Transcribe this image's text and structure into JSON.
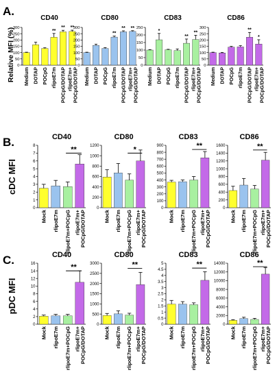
{
  "rows": [
    {
      "panel_label": "A.",
      "ylabel": "Relative MFI (%)",
      "show_ylabel_each": false
    },
    {
      "panel_label": "B.",
      "ylabel": "cDC MFI",
      "show_ylabel_each": false
    },
    {
      "panel_label": "C.",
      "ylabel": "pDC MFI",
      "show_ylabel_each": false
    }
  ],
  "chart_data": [
    {
      "row": 0,
      "col": 0,
      "type": "bar",
      "title": "CD40",
      "categories": [
        "Medium",
        "DOTAP",
        "POCpG",
        "rlipoE7m",
        "POCpG/DOTAP",
        "rlipoE7m+ POCpG/DOTAP"
      ],
      "values": [
        100,
        162,
        133,
        222,
        265,
        268
      ],
      "errors": [
        3,
        20,
        5,
        30,
        12,
        10
      ],
      "stars": [
        "",
        "",
        "",
        "**",
        "**",
        "**"
      ],
      "ylim": [
        0,
        300
      ],
      "yticks": [
        0,
        50,
        100,
        150,
        200,
        250,
        300
      ],
      "color": "#ffff2e"
    },
    {
      "row": 0,
      "col": 1,
      "type": "bar",
      "title": "CD80",
      "categories": [
        "Medium",
        "DOTAP",
        "POCpG",
        "rlipoE7m",
        "POCpG/DOTAP",
        "rlipoE7m+ POCpG/DOTAP"
      ],
      "values": [
        100,
        157,
        133,
        223,
        265,
        268
      ],
      "errors": [
        3,
        10,
        6,
        8,
        8,
        6
      ],
      "stars": [
        "",
        "",
        "",
        "**",
        "**",
        "**"
      ],
      "ylim": [
        0,
        300
      ],
      "yticks": [
        0,
        50,
        100,
        150,
        200,
        250,
        300
      ],
      "color": "#9ac3ee"
    },
    {
      "row": 0,
      "col": 2,
      "type": "bar",
      "title": "CD83",
      "categories": [
        "Medium",
        "DOTAP",
        "POCpG",
        "rlipoE7m",
        "POCpG/DOTAP",
        "rlipoE7m+ POCpG/DOTAP"
      ],
      "values": [
        100,
        168,
        102,
        97,
        145,
        170
      ],
      "errors": [
        3,
        42,
        3,
        10,
        28,
        28
      ],
      "stars": [
        "",
        "*",
        "",
        "",
        "**",
        "**"
      ],
      "ylim": [
        0,
        250
      ],
      "yticks": [
        0,
        50,
        100,
        150,
        200,
        250
      ],
      "color": "#a8f0a0"
    },
    {
      "row": 0,
      "col": 3,
      "type": "bar",
      "title": "CD86",
      "categories": [
        "Medium",
        "DOTAP",
        "POCpG",
        "rlipoE7m",
        "POCpG/DOTAP",
        "rlipoE7m+ POCpG/DOTAP"
      ],
      "values": [
        100,
        97,
        143,
        145,
        222,
        168
      ],
      "errors": [
        3,
        4,
        6,
        10,
        38,
        34
      ],
      "stars": [
        "",
        "",
        "",
        "",
        "**",
        "*"
      ],
      "ylim": [
        0,
        300
      ],
      "yticks": [
        0,
        50,
        100,
        150,
        200,
        250,
        300
      ],
      "color": "#c36ae8"
    },
    {
      "row": 1,
      "col": 0,
      "type": "bar",
      "title": "CD40",
      "categories": [
        "Mock",
        "rlipoE7m",
        "rlipoE7m+POCpG",
        "rlipoE7m+ POCpG/DOTAP"
      ],
      "values": [
        2.5,
        2.8,
        2.7,
        5.6
      ],
      "errors": [
        0.5,
        0.7,
        0.6,
        1.2
      ],
      "colors": [
        "#ffff2e",
        "#9ac3ee",
        "#a8f0a0",
        "#c36ae8"
      ],
      "ylim": [
        0,
        8
      ],
      "yticks": [
        0,
        1,
        2,
        3,
        4,
        5,
        6,
        7,
        8
      ],
      "bracket": {
        "from": 2,
        "to": 3,
        "label": "**",
        "y": 7.0
      }
    },
    {
      "row": 1,
      "col": 1,
      "type": "bar",
      "title": "CD80",
      "categories": [
        "Mock",
        "rlipoE7m",
        "rlipoE7m+POCpG",
        "rlipoE7m+ POCpG/DOTAP"
      ],
      "values": [
        590,
        670,
        530,
        900
      ],
      "errors": [
        140,
        180,
        120,
        210
      ],
      "colors": [
        "#ffff2e",
        "#9ac3ee",
        "#a8f0a0",
        "#c36ae8"
      ],
      "ylim": [
        0,
        1200
      ],
      "yticks": [
        0,
        200,
        400,
        600,
        800,
        1000,
        1200
      ],
      "bracket": {
        "from": 2,
        "to": 3,
        "label": "*",
        "y": 1050
      }
    },
    {
      "row": 1,
      "col": 2,
      "type": "bar",
      "title": "CD83",
      "categories": [
        "Mock",
        "rlipoE7m",
        "rlipoE7m+POCpG",
        "rlipoE7m+ POCpG/DOTAP"
      ],
      "values": [
        370,
        375,
        400,
        720
      ],
      "errors": [
        25,
        25,
        50,
        90
      ],
      "colors": [
        "#ffff2e",
        "#9ac3ee",
        "#a8f0a0",
        "#c36ae8"
      ],
      "ylim": [
        0,
        900
      ],
      "yticks": [
        0,
        100,
        200,
        300,
        400,
        500,
        600,
        700,
        800,
        900
      ],
      "bracket": {
        "from": 2,
        "to": 3,
        "label": "**",
        "y": 840
      }
    },
    {
      "row": 1,
      "col": 3,
      "type": "bar",
      "title": "CD86",
      "categories": [
        "Mock",
        "rlipoE7m",
        "rlipoE7m+POCpG",
        "rlipoE7m+ POCpG/DOTAP"
      ],
      "values": [
        440,
        580,
        480,
        1220
      ],
      "errors": [
        110,
        170,
        90,
        200
      ],
      "colors": [
        "#ffff2e",
        "#9ac3ee",
        "#a8f0a0",
        "#c36ae8"
      ],
      "ylim": [
        0,
        1600
      ],
      "yticks": [
        0,
        200,
        400,
        600,
        800,
        1000,
        1200,
        1400,
        1600
      ],
      "bracket": {
        "from": 2,
        "to": 3,
        "label": "**",
        "y": 1480
      }
    },
    {
      "row": 2,
      "col": 0,
      "type": "bar",
      "title": "CD40",
      "categories": [
        "Mock",
        "rlipoE7m",
        "rlipoE7m+POCpG",
        "rlipoE7m+ POCpG/DOTAP"
      ],
      "values": [
        2.1,
        2.2,
        2.2,
        11.0
      ],
      "errors": [
        0.3,
        0.4,
        0.4,
        3.0
      ],
      "colors": [
        "#ffff2e",
        "#9ac3ee",
        "#a8f0a0",
        "#c36ae8"
      ],
      "ylim": [
        0,
        16
      ],
      "yticks": [
        0,
        2,
        4,
        6,
        8,
        10,
        12,
        14,
        16
      ],
      "bracket": {
        "from": 2,
        "to": 3,
        "label": "**",
        "y": 14.0
      }
    },
    {
      "row": 2,
      "col": 1,
      "type": "bar",
      "title": "CD80",
      "categories": [
        "Mock",
        "rlipoE7m",
        "rlipoE7m+POCpG",
        "rlipoE7m+ POCpG/DOTAP"
      ],
      "values": [
        430,
        510,
        450,
        1950
      ],
      "errors": [
        100,
        150,
        90,
        600
      ],
      "colors": [
        "#ffff2e",
        "#9ac3ee",
        "#a8f0a0",
        "#c36ae8"
      ],
      "ylim": [
        0,
        3000
      ],
      "yticks": [
        0,
        500,
        1000,
        1500,
        2000,
        2500,
        3000
      ],
      "bracket": {
        "from": 2,
        "to": 3,
        "label": "**",
        "y": 2750
      }
    },
    {
      "row": 2,
      "col": 2,
      "type": "bar",
      "title": "CD83",
      "categories": [
        "Mock",
        "rlipoE7m",
        "rlipoE7m+POCpG",
        "rlipoE7m+ POCpG/DOTAP"
      ],
      "values": [
        1.65,
        1.65,
        1.6,
        3.6
      ],
      "errors": [
        0.3,
        0.2,
        0.15,
        0.7
      ],
      "colors": [
        "#ffff2e",
        "#9ac3ee",
        "#a8f0a0",
        "#c36ae8"
      ],
      "ylim": [
        0,
        5
      ],
      "yticks": [
        0,
        0.5,
        1,
        1.5,
        2,
        2.5,
        3,
        3.5,
        4,
        4.5,
        5
      ],
      "ytick_labels": [
        "0",
        "0.5",
        "1",
        "1.5",
        "2",
        "2.5",
        "3",
        "3.5",
        "4",
        "4.5",
        "5"
      ],
      "bracket": {
        "from": 2,
        "to": 3,
        "label": "**",
        "y": 4.6
      }
    },
    {
      "row": 2,
      "col": 3,
      "type": "bar",
      "title": "CD86",
      "categories": [
        "Mock",
        "rlipoE7m",
        "rlipoE7m+POCpG",
        "rlipoE7m+ POCpG/DOTAP"
      ],
      "values": [
        900,
        1300,
        1100,
        11500
      ],
      "errors": [
        150,
        300,
        250,
        1500
      ],
      "colors": [
        "#ffff2e",
        "#9ac3ee",
        "#a8f0a0",
        "#c36ae8"
      ],
      "ylim": [
        0,
        14000
      ],
      "yticks": [
        0,
        2000,
        4000,
        6000,
        8000,
        10000,
        12000,
        14000
      ],
      "bracket": {
        "from": 2,
        "to": 3,
        "label": "**",
        "y": 13200
      }
    }
  ]
}
